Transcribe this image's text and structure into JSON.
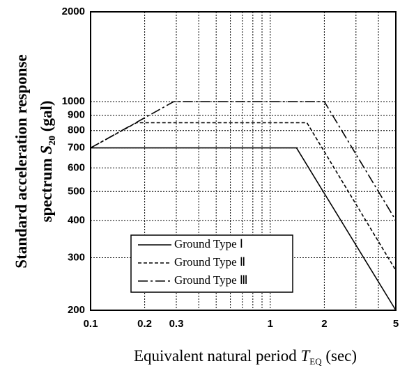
{
  "chart_data": {
    "type": "line",
    "xlabel": [
      "Equivalent natural period ",
      "T",
      "EQ",
      " (sec)"
    ],
    "ylabel": {
      "line1": "Standard acceleration response",
      "line2": [
        "spectrum ",
        "S",
        "20",
        " (gal)"
      ]
    },
    "xscale": "log",
    "yscale": "log",
    "xlim": [
      0.1,
      5
    ],
    "ylim": [
      200,
      2000
    ],
    "xticks": [
      0.1,
      0.2,
      0.3,
      1,
      2,
      5
    ],
    "x_minor_ticks": [
      0.4,
      0.5,
      0.6,
      0.7,
      0.8,
      0.9,
      3,
      4
    ],
    "yticks": [
      200,
      300,
      400,
      500,
      600,
      700,
      800,
      900,
      1000,
      2000
    ],
    "grid": true,
    "series": [
      {
        "name": "Ground Type Ⅰ",
        "color": "#000000",
        "dash": "solid",
        "x": [
          0.1,
          1.4,
          5
        ],
        "values": [
          700,
          700,
          200
        ]
      },
      {
        "name": "Ground Type Ⅱ",
        "color": "#000000",
        "dash": "dashed",
        "x": [
          0.1,
          0.18,
          1.6,
          5
        ],
        "values": [
          700,
          850,
          850,
          272
        ]
      },
      {
        "name": "Ground Type Ⅲ",
        "color": "#000000",
        "dash": "dashdot",
        "x": [
          0.1,
          0.29,
          2,
          5
        ],
        "values": [
          700,
          1000,
          1000,
          400
        ]
      }
    ]
  }
}
